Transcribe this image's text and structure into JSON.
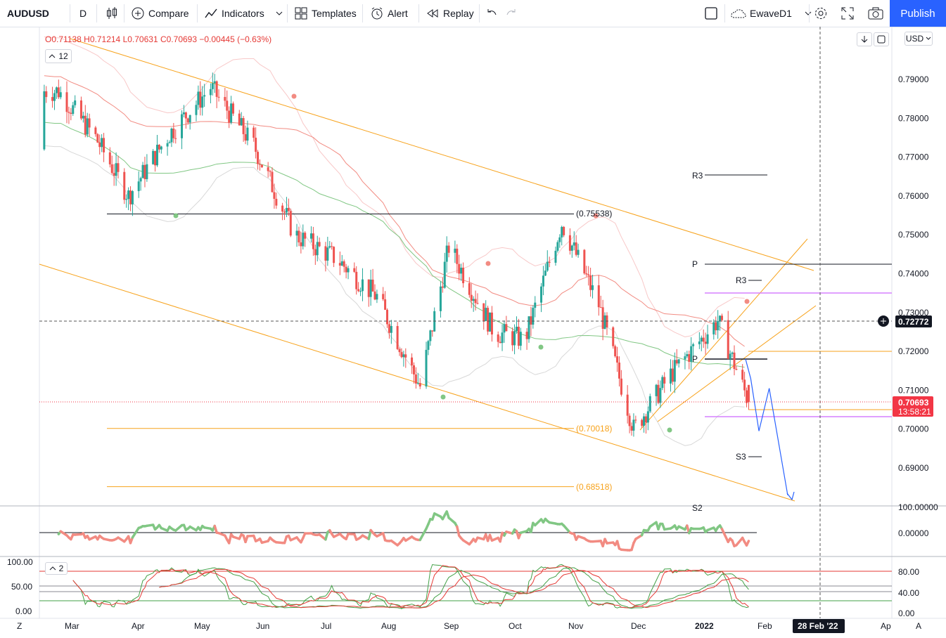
{
  "toolbar": {
    "symbol": "AUDUSD",
    "interval": "D",
    "compare": "Compare",
    "indicators": "Indicators",
    "templates": "Templates",
    "alert": "Alert",
    "replay": "Replay",
    "layout_name": "EwaveD1",
    "publish": "Publish"
  },
  "legend": {
    "open": "O0.71138",
    "high": "H0.71214",
    "low": "L0.70631",
    "close": "C0.70693",
    "change": "−0.00445 (−0.63%)",
    "collapse_count": "12"
  },
  "price_axis": {
    "currency": "USD",
    "ticks": [
      "0.79000",
      "0.78000",
      "0.77000",
      "0.76000",
      "0.75000",
      "0.74000",
      "0.73000",
      "0.72000",
      "0.71000",
      "0.70000",
      "0.69000"
    ],
    "crosshair_price": "0.72772",
    "last_price": "0.70693",
    "countdown": "13:58:21"
  },
  "annotations": {
    "fib_high": "(0.75538)",
    "fib_mid": "(0.70018)",
    "fib_low": "(0.68518)",
    "pivot_R3_main": "R3",
    "pivot_P_main": "P",
    "pivot_R3_recent": "R3",
    "pivot_P_recent": "P",
    "pivot_S3": "S3",
    "pivot_S2": "S2"
  },
  "oscillator1": {
    "ticks": [
      "100.00000",
      "0.00000"
    ]
  },
  "oscillator2": {
    "collapse_count": "2",
    "left_ticks": [
      "100.00",
      "50.00",
      "0.00"
    ],
    "right_ticks": [
      "80.00",
      "40.00",
      "0.00"
    ]
  },
  "time_axis": {
    "labels": [
      "Mar",
      "Apr",
      "May",
      "Jun",
      "Jul",
      "Aug",
      "Sep",
      "Oct",
      "Nov",
      "Dec",
      "2022",
      "Feb",
      "Ap"
    ],
    "crosshair_date": "28 Feb '22",
    "left_button": "Z",
    "right_button": "A"
  },
  "colors": {
    "up_candle": "#26a69a",
    "down_candle": "#ef5350",
    "accent": "#2962ff",
    "channel": "#f7a21b",
    "last_price_bg": "#f23645"
  },
  "chart_data": {
    "type": "candlestick",
    "symbol": "AUDUSD",
    "interval": "D",
    "ylim": [
      0.682,
      0.8
    ],
    "visible_x_range": [
      "2021-02-18",
      "2022-04-05"
    ],
    "closes": [
      {
        "date": "2021-02-25",
        "close": 0.787
      },
      {
        "date": "2021-03-15",
        "close": 0.775
      },
      {
        "date": "2021-03-31",
        "close": 0.76
      },
      {
        "date": "2021-04-20",
        "close": 0.776
      },
      {
        "date": "2021-05-10",
        "close": 0.788
      },
      {
        "date": "2021-05-31",
        "close": 0.773
      },
      {
        "date": "2021-06-20",
        "close": 0.75
      },
      {
        "date": "2021-07-10",
        "close": 0.744
      },
      {
        "date": "2021-07-30",
        "close": 0.734
      },
      {
        "date": "2021-08-20",
        "close": 0.711
      },
      {
        "date": "2021-09-03",
        "close": 0.747
      },
      {
        "date": "2021-09-25",
        "close": 0.725
      },
      {
        "date": "2021-10-10",
        "close": 0.723
      },
      {
        "date": "2021-10-28",
        "close": 0.753
      },
      {
        "date": "2021-11-15",
        "close": 0.732
      },
      {
        "date": "2021-12-02",
        "close": 0.7
      },
      {
        "date": "2021-12-20",
        "close": 0.714
      },
      {
        "date": "2022-01-12",
        "close": 0.728
      },
      {
        "date": "2022-01-27",
        "close": 0.7069
      }
    ],
    "horizontal_levels": [
      0.75538,
      0.70018,
      0.68518
    ],
    "projection": [
      {
        "date": "2022-01-28",
        "price": 0.713
      },
      {
        "date": "2022-02-01",
        "price": 0.6995
      },
      {
        "date": "2022-02-06",
        "price": 0.7105
      },
      {
        "date": "2022-02-15",
        "price": 0.683
      }
    ]
  }
}
